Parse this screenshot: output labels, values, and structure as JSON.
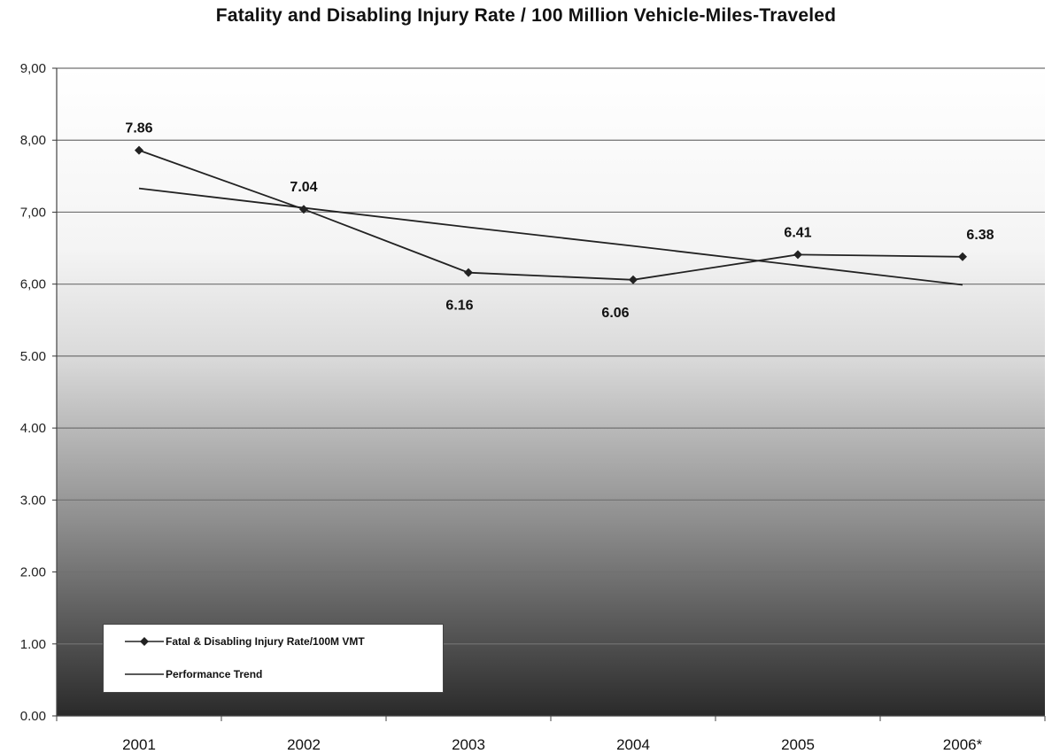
{
  "chart_data": {
    "type": "line",
    "title": "Fatality and Disabling Injury Rate / 100 Million Vehicle-Miles-Traveled",
    "xlabel": "",
    "ylabel": "",
    "categories": [
      "2001",
      "2002",
      "2003",
      "2004",
      "2005",
      "2006*"
    ],
    "y_tick_labels": [
      "0.00",
      "1.00",
      "2.00",
      "3.00",
      "4.00",
      "5.00",
      "6,00",
      "7,00",
      "8,00",
      "9,00"
    ],
    "ylim": [
      0,
      9
    ],
    "grid": true,
    "legend_placement": "bottom-left",
    "series": [
      {
        "name": "Fatal & Disabling Injury Rate/100M VMT",
        "values": [
          7.86,
          7.04,
          6.16,
          6.06,
          6.41,
          6.38
        ],
        "data_labels": [
          "7.86",
          "7.04",
          "6.16",
          "6.06",
          "6.41",
          "6.38"
        ],
        "marker": "diamond",
        "color": "#222222"
      },
      {
        "name": "Performance Trend",
        "values": [
          7.33,
          7.06,
          6.79,
          6.53,
          6.26,
          5.99
        ],
        "marker": "none",
        "color": "#222222"
      }
    ],
    "colors": {
      "background_top": "#ffffff",
      "background_bottom": "#2a2a2a",
      "gridline": "#666666"
    }
  }
}
